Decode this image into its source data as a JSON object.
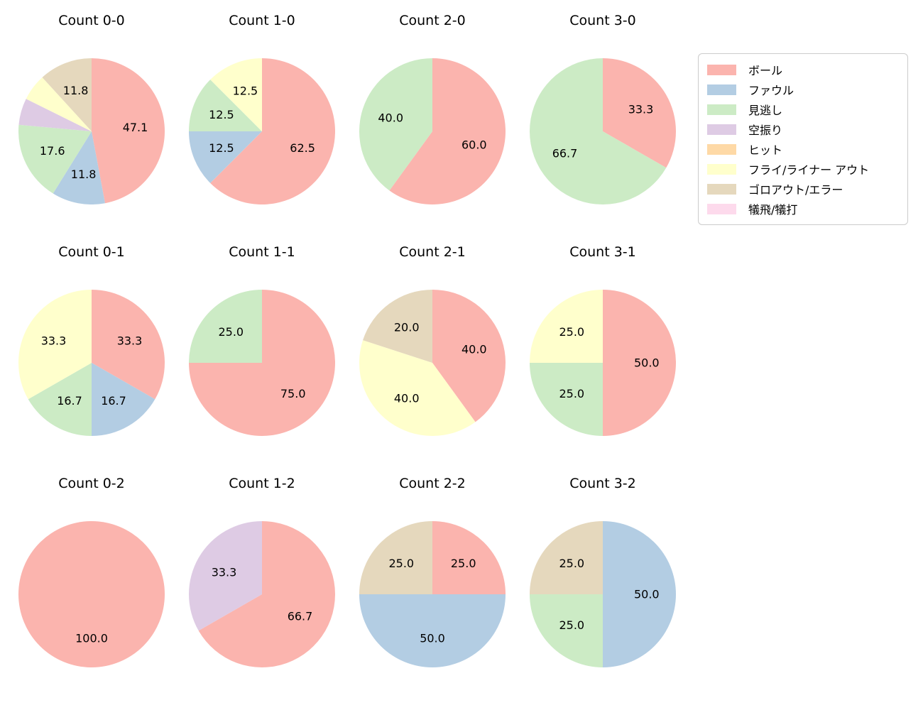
{
  "page": {
    "background": "#ffffff",
    "text_color": "#000000"
  },
  "legend": {
    "position": "upper-right",
    "border_color": "#cccccc",
    "items": [
      {
        "label": "ボール",
        "color": "#fbb4ae"
      },
      {
        "label": "ファウル",
        "color": "#b3cde3"
      },
      {
        "label": "見逃し",
        "color": "#ccebc5"
      },
      {
        "label": "空振り",
        "color": "#decbe4"
      },
      {
        "label": "ヒット",
        "color": "#fed9a6"
      },
      {
        "label": "フライ/ライナー アウト",
        "color": "#ffffcc"
      },
      {
        "label": "ゴロアウト/エラー",
        "color": "#e5d8bd"
      },
      {
        "label": "犠飛/犠打",
        "color": "#fddaec"
      }
    ]
  },
  "chart_data": {
    "type": "pie",
    "layout": {
      "grid_cols": 4,
      "grid_rows": 3,
      "start_angle_deg": 90,
      "clockwise": true,
      "pie_radius_px": 103,
      "label_radius_frac": 0.6,
      "label_min_pct": 10,
      "legend_position": "upper right",
      "grid": false
    },
    "charts": [
      {
        "title": "Count 0-0",
        "slices": [
          {
            "category": "ボール",
            "value": 47.1
          },
          {
            "category": "ファウル",
            "value": 11.8
          },
          {
            "category": "見逃し",
            "value": 17.6
          },
          {
            "category": "空振り",
            "value": 5.9
          },
          {
            "category": "フライ/ライナー アウト",
            "value": 5.9
          },
          {
            "category": "ゴロアウト/エラー",
            "value": 11.8
          }
        ]
      },
      {
        "title": "Count 1-0",
        "slices": [
          {
            "category": "ボール",
            "value": 62.5
          },
          {
            "category": "ファウル",
            "value": 12.5
          },
          {
            "category": "見逃し",
            "value": 12.5
          },
          {
            "category": "フライ/ライナー アウト",
            "value": 12.5
          }
        ]
      },
      {
        "title": "Count 2-0",
        "slices": [
          {
            "category": "ボール",
            "value": 60.0
          },
          {
            "category": "見逃し",
            "value": 40.0
          }
        ]
      },
      {
        "title": "Count 3-0",
        "slices": [
          {
            "category": "ボール",
            "value": 33.3
          },
          {
            "category": "見逃し",
            "value": 66.7
          }
        ]
      },
      {
        "title": "Count 0-1",
        "slices": [
          {
            "category": "ボール",
            "value": 33.3
          },
          {
            "category": "ファウル",
            "value": 16.7
          },
          {
            "category": "見逃し",
            "value": 16.7
          },
          {
            "category": "フライ/ライナー アウト",
            "value": 33.3
          }
        ]
      },
      {
        "title": "Count 1-1",
        "slices": [
          {
            "category": "ボール",
            "value": 75.0
          },
          {
            "category": "見逃し",
            "value": 25.0
          }
        ]
      },
      {
        "title": "Count 2-1",
        "slices": [
          {
            "category": "ボール",
            "value": 40.0
          },
          {
            "category": "フライ/ライナー アウト",
            "value": 40.0
          },
          {
            "category": "ゴロアウト/エラー",
            "value": 20.0
          }
        ]
      },
      {
        "title": "Count 3-1",
        "slices": [
          {
            "category": "ボール",
            "value": 50.0
          },
          {
            "category": "見逃し",
            "value": 25.0
          },
          {
            "category": "フライ/ライナー アウト",
            "value": 25.0
          }
        ]
      },
      {
        "title": "Count 0-2",
        "slices": [
          {
            "category": "ボール",
            "value": 100.0
          }
        ]
      },
      {
        "title": "Count 1-2",
        "slices": [
          {
            "category": "ボール",
            "value": 66.7
          },
          {
            "category": "空振り",
            "value": 33.3
          }
        ]
      },
      {
        "title": "Count 2-2",
        "slices": [
          {
            "category": "ボール",
            "value": 25.0
          },
          {
            "category": "ファウル",
            "value": 50.0
          },
          {
            "category": "ゴロアウト/エラー",
            "value": 25.0
          }
        ]
      },
      {
        "title": "Count 3-2",
        "slices": [
          {
            "category": "ファウル",
            "value": 50.0
          },
          {
            "category": "見逃し",
            "value": 25.0
          },
          {
            "category": "ゴロアウト/エラー",
            "value": 25.0
          }
        ]
      }
    ]
  }
}
